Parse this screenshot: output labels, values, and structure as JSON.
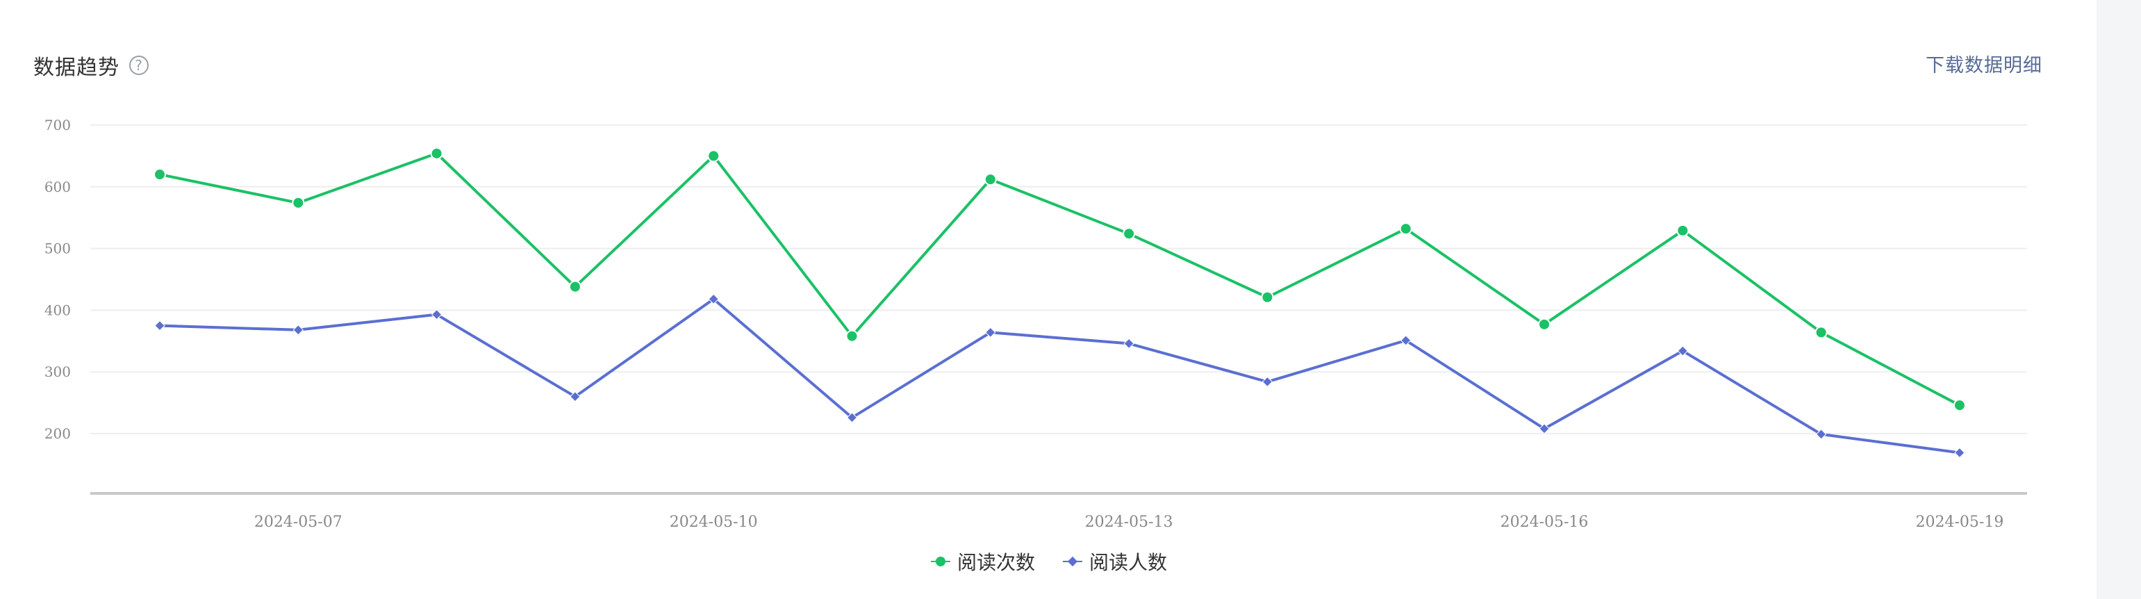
{
  "header": {
    "title": "数据趋势",
    "help_symbol": "?",
    "download_label": "下载数据明细"
  },
  "colors": {
    "series_reads": "#1bc166",
    "series_readers": "#5b6fd1",
    "grid": "#eeeeee",
    "axis": "#c8c8c8",
    "tick_text": "#888888"
  },
  "chart_data": {
    "type": "line",
    "title": "数据趋势",
    "x": [
      "2024-05-06",
      "2024-05-07",
      "2024-05-08",
      "2024-05-09",
      "2024-05-10",
      "2024-05-11",
      "2024-05-12",
      "2024-05-13",
      "2024-05-14",
      "2024-05-15",
      "2024-05-16",
      "2024-05-17",
      "2024-05-18",
      "2024-05-19"
    ],
    "x_tick_labels": [
      "2024-05-07",
      "2024-05-10",
      "2024-05-13",
      "2024-05-16",
      "2024-05-19"
    ],
    "y_ticks": [
      200,
      300,
      400,
      500,
      600,
      700
    ],
    "ylim": [
      100,
      700
    ],
    "grid": true,
    "legend_position": "bottom-center",
    "series": [
      {
        "name": "阅读次数",
        "marker": "circle",
        "values": [
          620,
          574,
          654,
          438,
          650,
          358,
          612,
          524,
          421,
          532,
          377,
          529,
          364,
          246
        ]
      },
      {
        "name": "阅读人数",
        "marker": "diamond",
        "values": [
          375,
          368,
          393,
          260,
          418,
          226,
          364,
          346,
          284,
          351,
          208,
          334,
          199,
          169
        ]
      }
    ]
  }
}
